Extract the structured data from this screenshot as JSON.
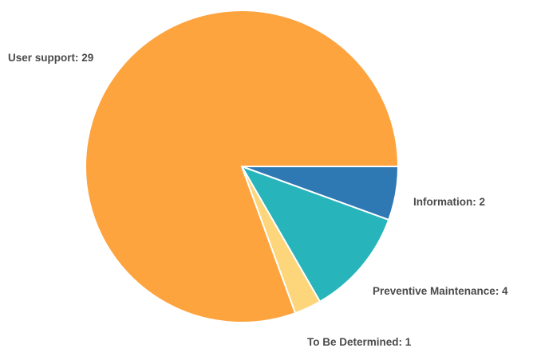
{
  "chart_data": {
    "type": "pie",
    "title": "",
    "start_direction": "east",
    "order": "clockwise",
    "slices": [
      {
        "label": "Information",
        "value": 2,
        "color": "#2e78b4",
        "display_label": "Information: 2"
      },
      {
        "label": "Preventive Maintenance",
        "value": 4,
        "color": "#27b5bb",
        "display_label": "Preventive Maintenance: 4"
      },
      {
        "label": "To Be Determined",
        "value": 1,
        "color": "#fdd67c",
        "display_label": "To Be Determined: 1"
      },
      {
        "label": "User support",
        "value": 29,
        "color": "#fda43f",
        "display_label": "User support: 29"
      }
    ],
    "legend": "none",
    "labels": "outside"
  }
}
